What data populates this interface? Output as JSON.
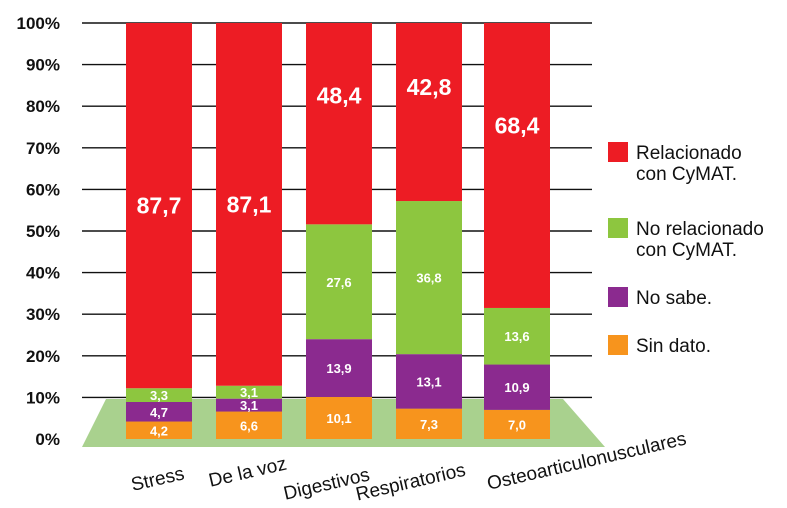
{
  "chart_data": {
    "type": "bar",
    "stacked": true,
    "title": "",
    "xlabel": "",
    "ylabel": "",
    "ylim": [
      0,
      100
    ],
    "y_ticks": [
      "0%",
      "10%",
      "20%",
      "30%",
      "40%",
      "50%",
      "60%",
      "70%",
      "80%",
      "90%",
      "100%"
    ],
    "grid": true,
    "legend_position": "right",
    "categories": [
      "Stress",
      "De la voz",
      "Digestivos",
      "Respiratorios",
      "Osteoarticulonusculares"
    ],
    "series": [
      {
        "name": "Sin dato.",
        "color": "#f7941d",
        "values": [
          4.2,
          6.6,
          10.1,
          7.3,
          7.0
        ],
        "labels": [
          "4,2",
          "6,6",
          "10,1",
          "7,3",
          "7,0"
        ]
      },
      {
        "name": "No sabe.",
        "color": "#8b2a8f",
        "values": [
          4.7,
          3.1,
          13.9,
          13.1,
          10.9
        ],
        "labels": [
          "4,7",
          "3,1",
          "13,9",
          "13,1",
          "10,9"
        ]
      },
      {
        "name": "No relacionado con CyMAT.",
        "color": "#8dc63f",
        "values": [
          3.3,
          3.1,
          27.6,
          36.8,
          13.6
        ],
        "labels": [
          "3,3",
          "3,1",
          "27,6",
          "36,8",
          "13,6"
        ]
      },
      {
        "name": "Relacionado con CyMAT.",
        "color": "#ed1c24",
        "values": [
          87.7,
          87.1,
          48.4,
          42.8,
          68.4
        ],
        "labels": [
          "87,7",
          "87,1",
          "48,4",
          "42,8",
          "68,4"
        ]
      }
    ],
    "legend": [
      {
        "lines": [
          "Relacionado",
          "con CyMAT."
        ],
        "color": "#ed1c24"
      },
      {
        "lines": [
          "No relacionado",
          "con CyMAT."
        ],
        "color": "#8dc63f"
      },
      {
        "lines": [
          "No sabe."
        ],
        "color": "#8b2a8f"
      },
      {
        "lines": [
          "Sin dato."
        ],
        "color": "#f7941d"
      }
    ],
    "floor_color": "#a9d18e"
  }
}
